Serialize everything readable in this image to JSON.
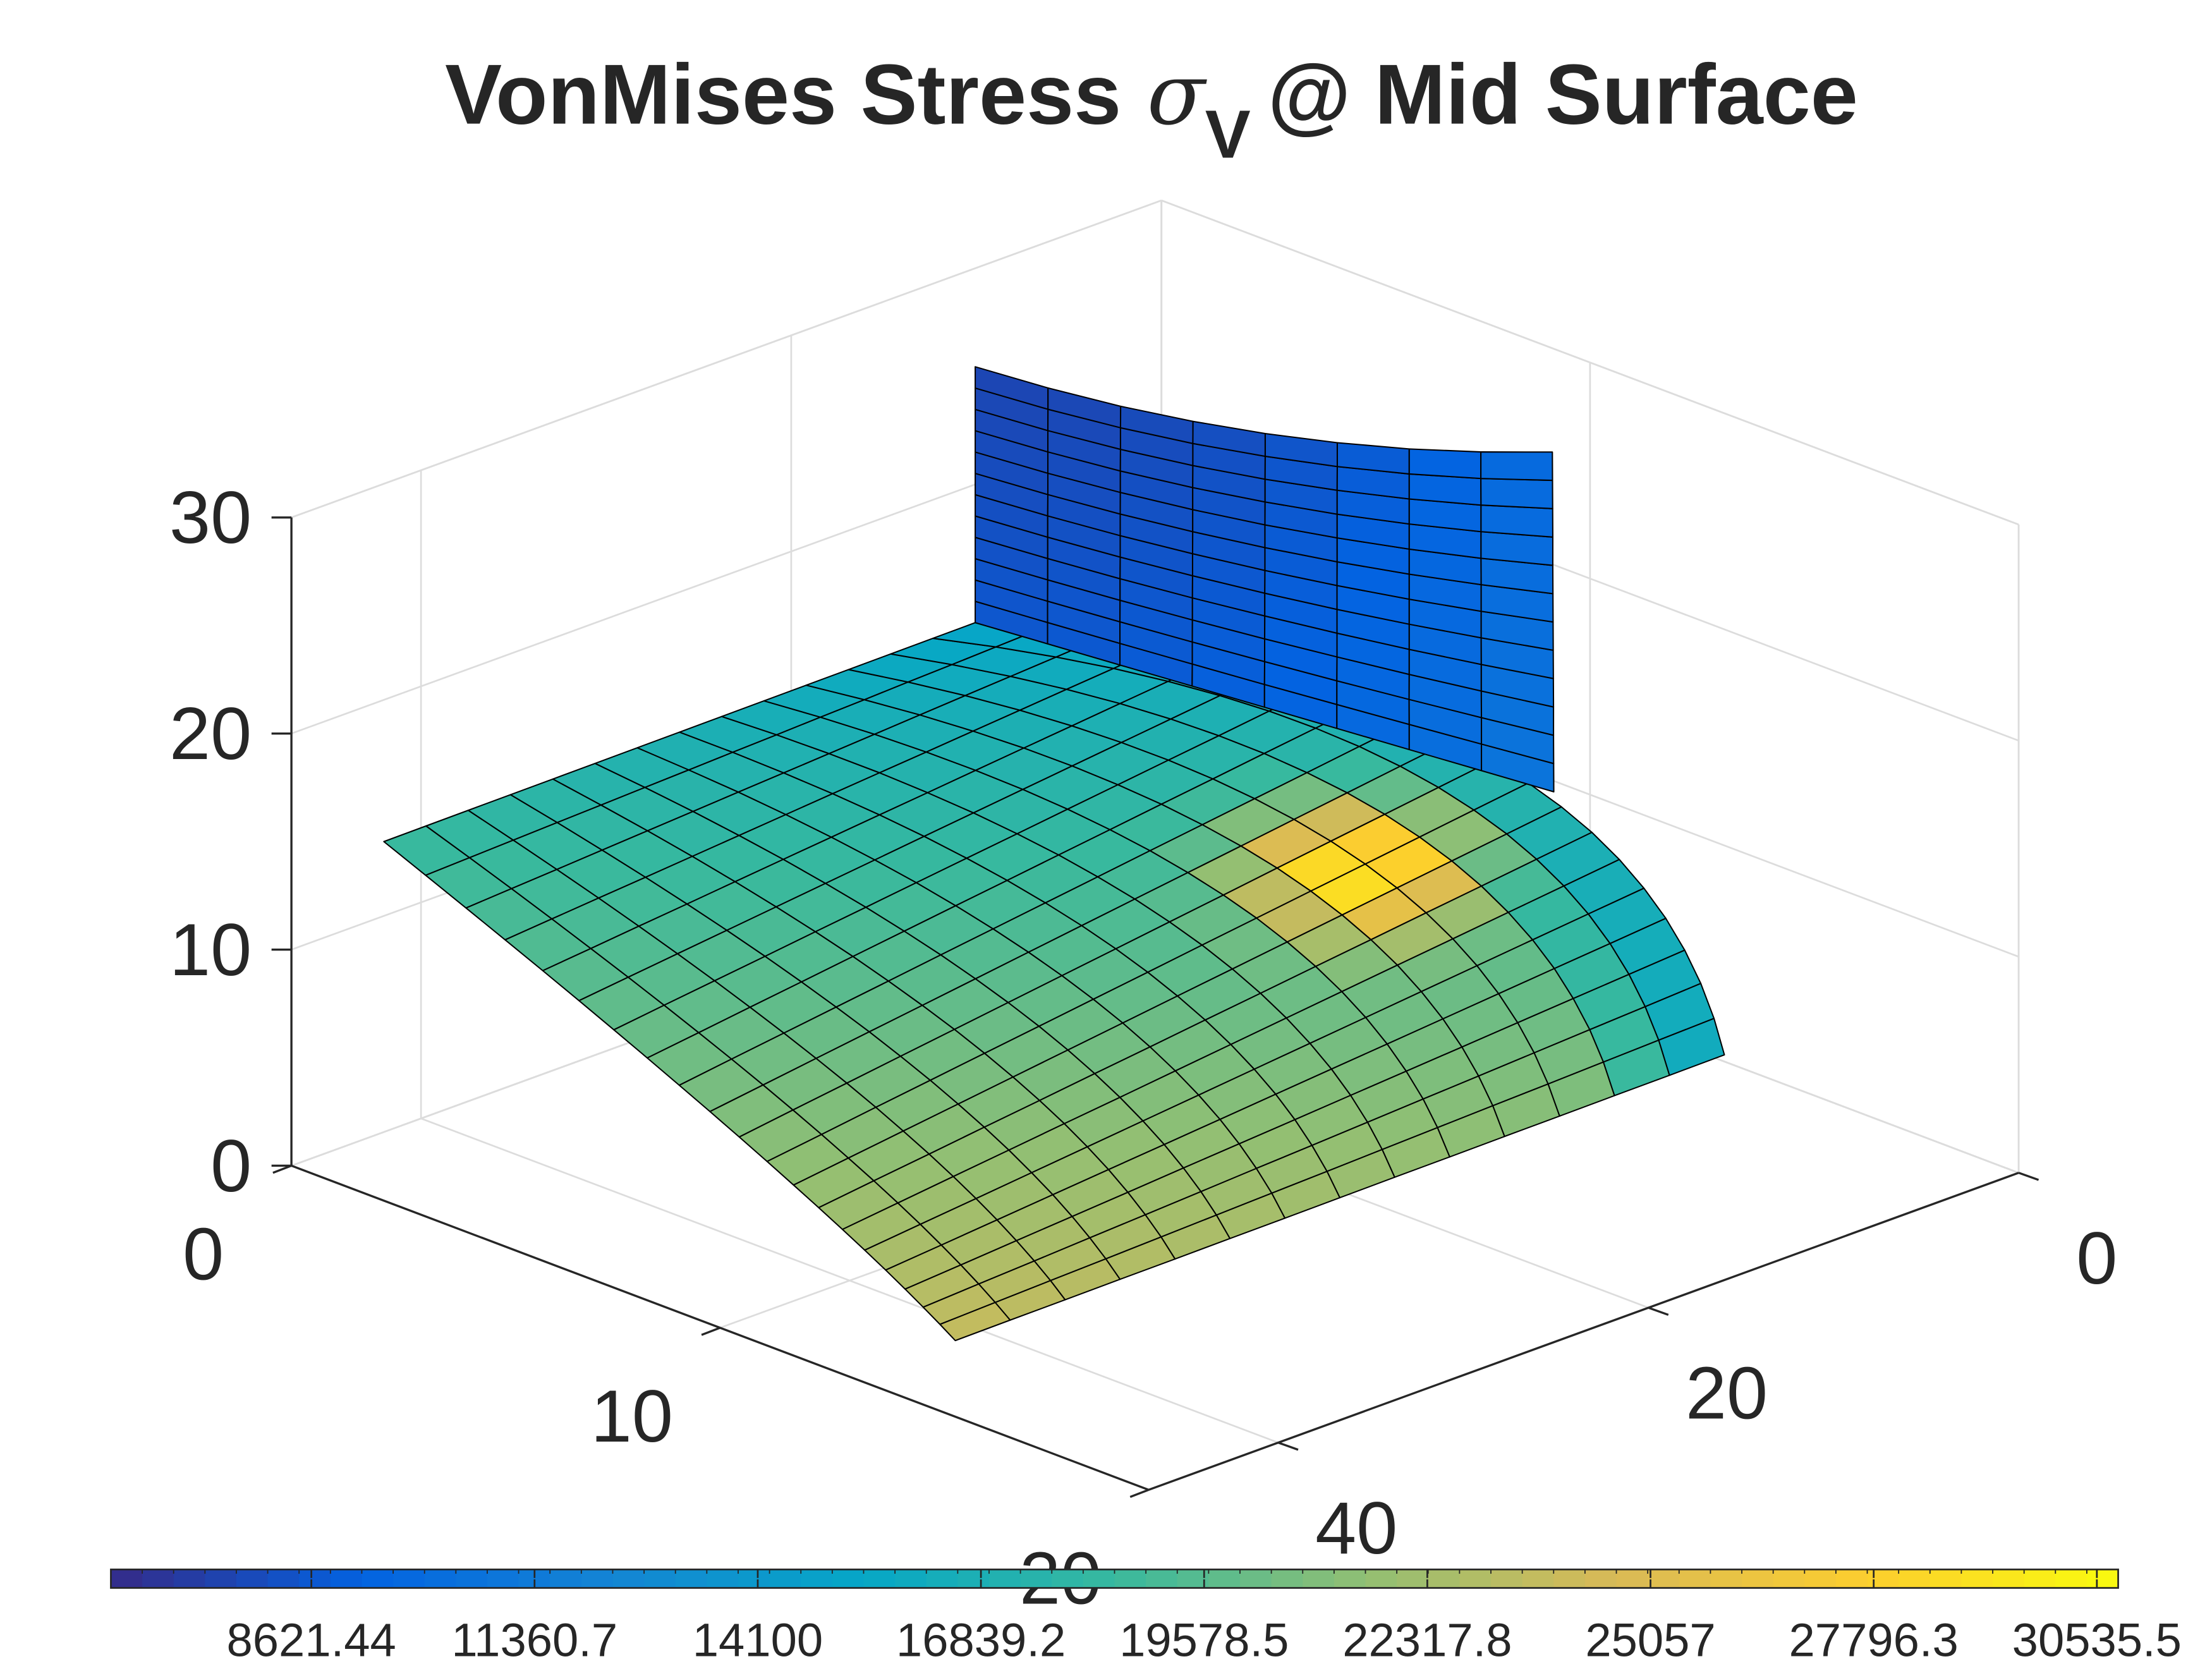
{
  "chart_data": {
    "type": "surface",
    "title": "VonMises Stress",
    "title_symbol": "σ",
    "title_subscript": "V",
    "title_suffix": "@ Mid Surface",
    "xlim": [
      0,
      20
    ],
    "xticks": [
      0,
      10,
      20
    ],
    "ylim": [
      0,
      47
    ],
    "yticks": [
      0,
      20,
      40
    ],
    "zlim": [
      0,
      30
    ],
    "zticks": [
      0,
      10,
      20,
      30
    ],
    "grid": true,
    "colorbar": {
      "location": "south",
      "clim": [
        6161,
        30797
      ],
      "ticks": [
        8621.44,
        11360.7,
        14100,
        16839.2,
        19578.5,
        22317.8,
        25057,
        27796.3,
        30535.5
      ],
      "colormap": [
        "#352a87",
        "#0363e1",
        "#1485d4",
        "#06a7c6",
        "#38b99e",
        "#92bf73",
        "#d9ba56",
        "#fcce2e",
        "#f9fb0e"
      ]
    }
  }
}
